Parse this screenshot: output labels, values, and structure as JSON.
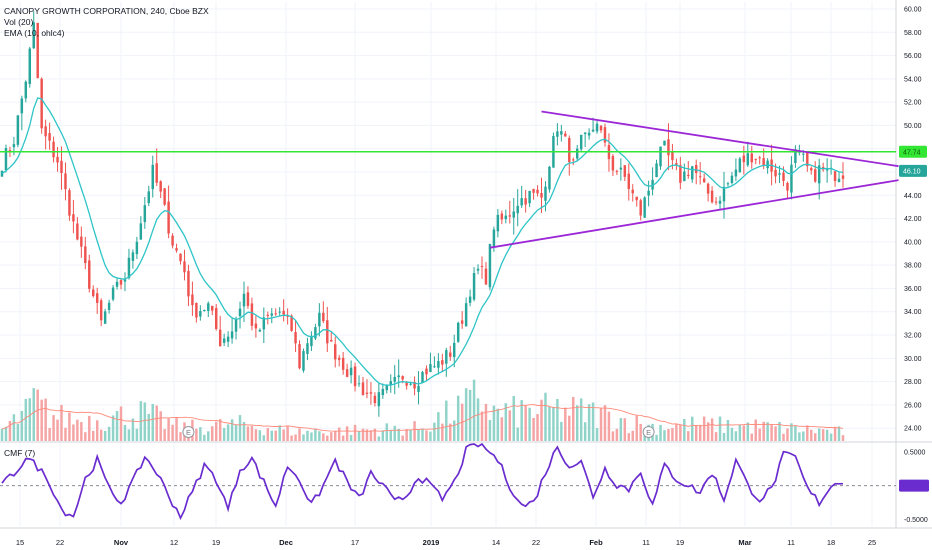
{
  "header": {
    "symbol_line": "CANOPY GROWTH CORPORATION, 240, Cboe BZX",
    "vol_line": "Vol (20)",
    "ema_line": "EMA (10, ohlc4)",
    "cmf_line": "CMF (7)"
  },
  "colors": {
    "up": "#26a69a",
    "down": "#ef5350",
    "vol_up": "#8fd3c9",
    "vol_down": "#f5a3a3",
    "ema": "#2ec4c7",
    "vol_ma": "#ff8a7a",
    "cmf": "#6a2ccf",
    "resistance": "#33e633",
    "triangle": "#9c27d6",
    "grid": "#f0f3fa"
  },
  "chart_data": [
    {
      "type": "candlestick",
      "title": "CANOPY GROWTH CORPORATION, 240, Cboe BZX",
      "ylim": [
        22.9,
        60.6
      ],
      "y_ticks": [
        "60.00",
        "58.00",
        "56.00",
        "54.00",
        "52.00",
        "50.00",
        "48.00",
        "46.00",
        "44.00",
        "42.00",
        "40.00",
        "38.00",
        "36.00",
        "34.00",
        "32.00",
        "30.00",
        "28.00",
        "26.00",
        "24.00"
      ],
      "x_ticks": [
        "15",
        "22",
        "Nov",
        "12",
        "19",
        "Dec",
        "17",
        "2019",
        "14",
        "22",
        "Feb",
        "11",
        "19",
        "Mar",
        "11",
        "18",
        "25"
      ],
      "x_ticks_bold": [
        "Nov",
        "Dec",
        "2019",
        "Feb",
        "Mar"
      ],
      "price_labels": [
        {
          "value": 47.74,
          "text": "47.74",
          "color": "#33e633"
        },
        {
          "value": 46.1,
          "text": "46.10",
          "color": "#26a69a"
        }
      ],
      "horizontal_line": {
        "value": 47.74,
        "label": "resistance"
      },
      "trendlines": [
        {
          "name": "upper",
          "from": {
            "bar": 136,
            "price": 51.2
          },
          "to": {
            "bar": 226,
            "price": 46.5
          }
        },
        {
          "name": "lower",
          "from": {
            "bar": 123,
            "price": 39.5
          },
          "to": {
            "bar": 226,
            "price": 45.3
          }
        }
      ],
      "events": [
        {
          "bar": 47,
          "label": "E"
        },
        {
          "bar": 163,
          "label": "E"
        }
      ],
      "anchors": [
        [
          0,
          46.8
        ],
        [
          3,
          48.8
        ],
        [
          6,
          54.0
        ],
        [
          8,
          58.5
        ],
        [
          10,
          49.5
        ],
        [
          14,
          47.0
        ],
        [
          18,
          41.5
        ],
        [
          22,
          36.5
        ],
        [
          25,
          33.0
        ],
        [
          28,
          35.5
        ],
        [
          31,
          37.0
        ],
        [
          34,
          40.5
        ],
        [
          38,
          46.0
        ],
        [
          40,
          44.0
        ],
        [
          43,
          40.0
        ],
        [
          46,
          37.5
        ],
        [
          48,
          34.0
        ],
        [
          52,
          34.5
        ],
        [
          55,
          31.5
        ],
        [
          58,
          32.5
        ],
        [
          61,
          35.5
        ],
        [
          64,
          32.0
        ],
        [
          67,
          33.5
        ],
        [
          70,
          34.0
        ],
        [
          73,
          32.5
        ],
        [
          75,
          29.5
        ],
        [
          77,
          31.5
        ],
        [
          80,
          33.5
        ],
        [
          83,
          31.0
        ],
        [
          86,
          29.5
        ],
        [
          89,
          28.0
        ],
        [
          92,
          27.0
        ],
        [
          95,
          26.5
        ],
        [
          98,
          27.5
        ],
        [
          101,
          28.5
        ],
        [
          104,
          28.0
        ],
        [
          107,
          29.0
        ],
        [
          110,
          29.5
        ],
        [
          113,
          30.5
        ],
        [
          116,
          33.5
        ],
        [
          118,
          36.0
        ],
        [
          120,
          37.5
        ],
        [
          122,
          37.0
        ],
        [
          124,
          41.5
        ],
        [
          127,
          42.0
        ],
        [
          130,
          43.5
        ],
        [
          133,
          44.0
        ],
        [
          136,
          43.8
        ],
        [
          138,
          47.0
        ],
        [
          140,
          50.0
        ],
        [
          142,
          48.5
        ],
        [
          144,
          46.5
        ],
        [
          146,
          48.5
        ],
        [
          148,
          49.0
        ],
        [
          150,
          50.5
        ],
        [
          152,
          48.0
        ],
        [
          154,
          46.5
        ],
        [
          157,
          45.5
        ],
        [
          159,
          44.0
        ],
        [
          161,
          42.5
        ],
        [
          163,
          44.5
        ],
        [
          165,
          47.0
        ],
        [
          167,
          48.0
        ],
        [
          169,
          46.5
        ],
        [
          171,
          45.5
        ],
        [
          174,
          46.5
        ],
        [
          177,
          44.5
        ],
        [
          180,
          43.5
        ],
        [
          183,
          45.0
        ],
        [
          186,
          46.8
        ],
        [
          189,
          47.5
        ],
        [
          192,
          47.0
        ],
        [
          195,
          46.0
        ],
        [
          198,
          45.0
        ],
        [
          200,
          47.5
        ],
        [
          202,
          47.0
        ],
        [
          204,
          45.5
        ],
        [
          206,
          46.2
        ],
        [
          209,
          45.8
        ],
        [
          212,
          46.0
        ]
      ],
      "volume_ylim": [
        0,
        100
      ],
      "volume_anchors": [
        [
          0,
          12
        ],
        [
          6,
          30
        ],
        [
          8,
          45
        ],
        [
          12,
          28
        ],
        [
          20,
          22
        ],
        [
          36,
          30
        ],
        [
          45,
          14
        ],
        [
          60,
          18
        ],
        [
          75,
          10
        ],
        [
          90,
          12
        ],
        [
          105,
          14
        ],
        [
          118,
          40
        ],
        [
          120,
          52
        ],
        [
          124,
          30
        ],
        [
          140,
          34
        ],
        [
          150,
          30
        ],
        [
          163,
          16
        ],
        [
          175,
          18
        ],
        [
          190,
          16
        ],
        [
          212,
          10
        ]
      ]
    },
    {
      "type": "line",
      "title": "CMF (7)",
      "ylim": [
        -0.6,
        0.62
      ],
      "y_ticks": [
        "0.5000",
        "0.0000",
        "-0.5000"
      ],
      "y_tick_values": [
        0.5,
        0.0,
        -0.5
      ],
      "zero_line": true,
      "anchors": [
        [
          0,
          0.0
        ],
        [
          4,
          0.25
        ],
        [
          6,
          0.42
        ],
        [
          9,
          0.28
        ],
        [
          12,
          0.05
        ],
        [
          15,
          -0.35
        ],
        [
          18,
          -0.45
        ],
        [
          21,
          0.1
        ],
        [
          24,
          0.38
        ],
        [
          27,
          -0.05
        ],
        [
          30,
          -0.25
        ],
        [
          33,
          0.05
        ],
        [
          36,
          0.43
        ],
        [
          39,
          0.2
        ],
        [
          42,
          -0.15
        ],
        [
          45,
          -0.45
        ],
        [
          48,
          -0.1
        ],
        [
          51,
          0.3
        ],
        [
          54,
          0.1
        ],
        [
          57,
          -0.35
        ],
        [
          60,
          0.25
        ],
        [
          63,
          0.4
        ],
        [
          66,
          0.05
        ],
        [
          69,
          -0.3
        ],
        [
          72,
          0.3
        ],
        [
          75,
          0.1
        ],
        [
          78,
          -0.3
        ],
        [
          81,
          0.0
        ],
        [
          84,
          0.38
        ],
        [
          87,
          0.05
        ],
        [
          90,
          -0.2
        ],
        [
          93,
          0.18
        ],
        [
          96,
          0.0
        ],
        [
          99,
          -0.25
        ],
        [
          102,
          -0.15
        ],
        [
          105,
          0.15
        ],
        [
          108,
          0.0
        ],
        [
          111,
          -0.2
        ],
        [
          114,
          0.05
        ],
        [
          117,
          0.52
        ],
        [
          120,
          0.62
        ],
        [
          122,
          0.55
        ],
        [
          125,
          0.38
        ],
        [
          128,
          0.0
        ],
        [
          131,
          -0.3
        ],
        [
          134,
          -0.25
        ],
        [
          137,
          0.2
        ],
        [
          140,
          0.58
        ],
        [
          143,
          0.3
        ],
        [
          146,
          0.35
        ],
        [
          149,
          -0.15
        ],
        [
          152,
          0.25
        ],
        [
          155,
          0.02
        ],
        [
          158,
          -0.05
        ],
        [
          161,
          0.22
        ],
        [
          164,
          -0.3
        ],
        [
          167,
          0.3
        ],
        [
          170,
          0.1
        ],
        [
          173,
          0.0
        ],
        [
          176,
          -0.1
        ],
        [
          179,
          0.2
        ],
        [
          182,
          -0.2
        ],
        [
          185,
          0.38
        ],
        [
          188,
          0.0
        ],
        [
          191,
          -0.2
        ],
        [
          194,
          -0.05
        ],
        [
          197,
          0.45
        ],
        [
          200,
          0.42
        ],
        [
          203,
          -0.05
        ],
        [
          206,
          -0.25
        ],
        [
          209,
          0.0
        ],
        [
          212,
          0.08
        ]
      ]
    }
  ]
}
